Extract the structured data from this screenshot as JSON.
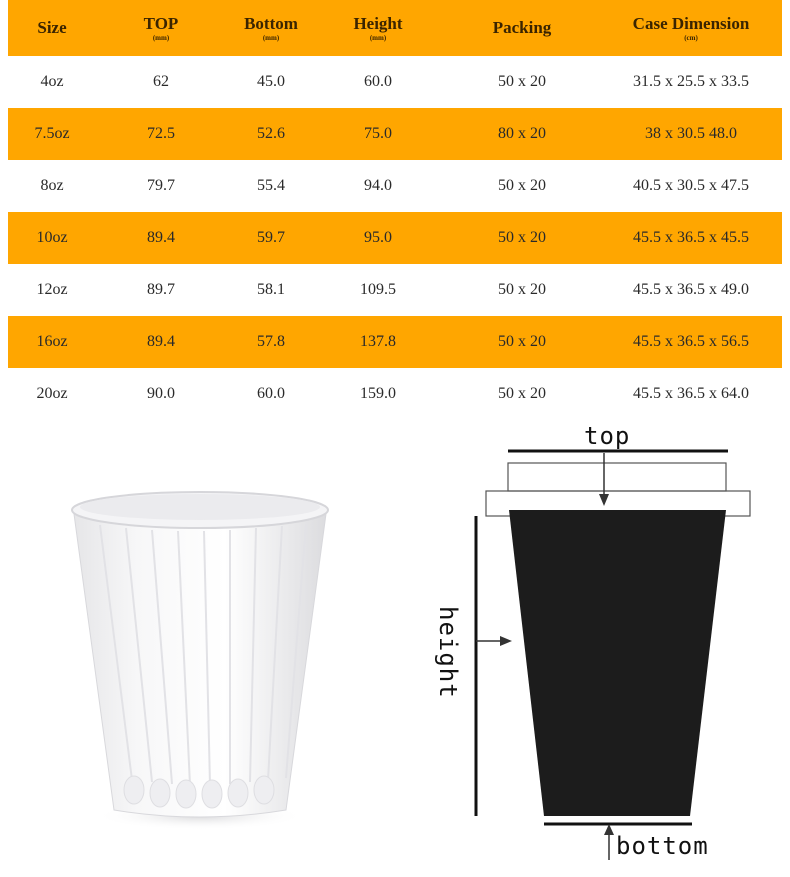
{
  "headers": [
    {
      "label": "Size",
      "unit": ""
    },
    {
      "label": "TOP",
      "unit": "(mm)"
    },
    {
      "label": "Bottom",
      "unit": "(mm)"
    },
    {
      "label": "Height",
      "unit": "(mm)"
    },
    {
      "label": "Packing",
      "unit": ""
    },
    {
      "label": "Case Dimension",
      "unit": "(cm)"
    }
  ],
  "rows": [
    [
      "4oz",
      "62",
      "45.0",
      "60.0",
      "50 x 20",
      "31.5 x 25.5 x 33.5"
    ],
    [
      "7.5oz",
      "72.5",
      "52.6",
      "75.0",
      "80 x 20",
      "38 x 30.5 48.0"
    ],
    [
      "8oz",
      "79.7",
      "55.4",
      "94.0",
      "50 x 20",
      "40.5 x 30.5 x 47.5"
    ],
    [
      "10oz",
      "89.4",
      "59.7",
      "95.0",
      "50 x 20",
      "45.5 x 36.5 x 45.5"
    ],
    [
      "12oz",
      "89.7",
      "58.1",
      "109.5",
      "50 x 20",
      "45.5 x 36.5 x 49.0"
    ],
    [
      "16oz",
      "89.4",
      "57.8",
      "137.8",
      "50 x 20",
      "45.5 x 36.5 x 56.5"
    ],
    [
      "20oz",
      "90.0",
      "60.0",
      "159.0",
      "50 x 20",
      "45.5 x 36.5 x 64.0"
    ]
  ],
  "diagram": {
    "top_label": "top",
    "height_label": "height",
    "bottom_label": "bottom"
  },
  "colors": {
    "band": "#ffa600",
    "cup_silhouette": "#1c1c1c"
  }
}
